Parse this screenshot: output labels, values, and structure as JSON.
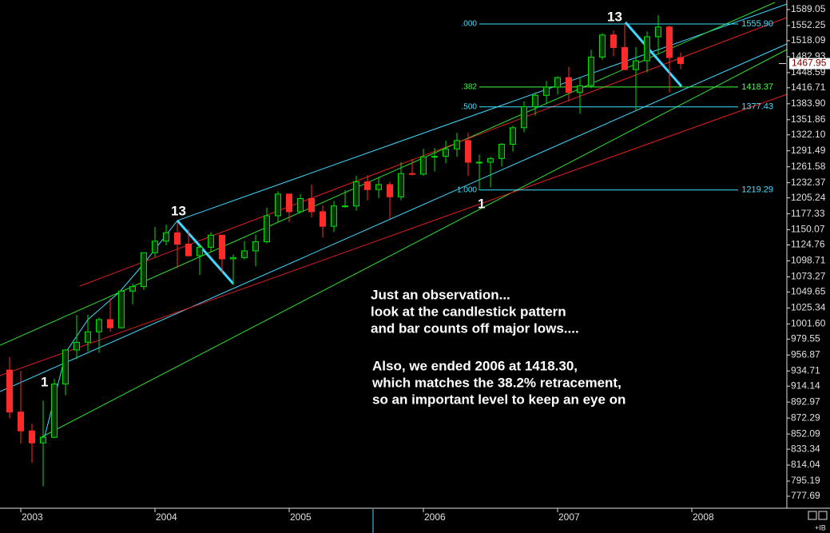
{
  "chart_data": {
    "type": "candlestick",
    "log_scale": true,
    "up_color": "#00e000",
    "down_color": "#ff2a2a",
    "categories": [
      null,
      null,
      null,
      null,
      null,
      null,
      null,
      null,
      null,
      null,
      null,
      null,
      null,
      null,
      null,
      null,
      null,
      null,
      null,
      null,
      null,
      null,
      null,
      null,
      null,
      null,
      null,
      null,
      null,
      null,
      null,
      null,
      null,
      null,
      null,
      null,
      null,
      null,
      null,
      null,
      null,
      null,
      null,
      null,
      null,
      null,
      null,
      null,
      null,
      null,
      null,
      null,
      null,
      null,
      null,
      null,
      null,
      null,
      null,
      null,
      null
    ],
    "open": [
      936,
      880,
      856,
      841,
      848,
      917,
      964,
      975,
      990,
      1008,
      996,
      1051,
      1058,
      1112,
      1131,
      1145,
      1126,
      1107,
      1121,
      1141,
      1102,
      1104,
      1115,
      1130,
      1174,
      1212,
      1181,
      1204,
      1181,
      1156,
      1191,
      1191,
      1234,
      1220,
      1229,
      1207,
      1249,
      1248,
      1280,
      1281,
      1295,
      1311,
      1270,
      1270,
      1277,
      1304,
      1336,
      1378,
      1401,
      1418,
      1438,
      1407,
      1421,
      1482,
      1531,
      1503,
      1455,
      1474,
      1527,
      1549,
      1481
    ],
    "high": [
      954,
      935,
      865,
      895,
      924,
      965,
      1015,
      1015,
      1011,
      1040,
      1053,
      1063,
      1112,
      1155,
      1159,
      1163,
      1151,
      1127,
      1146,
      1141,
      1109,
      1131,
      1142,
      1188,
      1217,
      1212,
      1212,
      1229,
      1192,
      1200,
      1219,
      1245,
      1246,
      1243,
      1234,
      1270,
      1276,
      1295,
      1297,
      1311,
      1326,
      1326,
      1284,
      1280,
      1306,
      1340,
      1389,
      1407,
      1431,
      1441,
      1461,
      1438,
      1498,
      1535,
      1541,
      1556,
      1504,
      1539,
      1576,
      1552,
      1492
    ],
    "low": [
      872,
      840,
      817,
      789,
      847,
      902,
      951,
      962,
      960,
      990,
      995,
      1031,
      1053,
      1105,
      1124,
      1087,
      1106,
      1076,
      1113,
      1079,
      1060,
      1101,
      1090,
      1127,
      1163,
      1163,
      1180,
      1171,
      1137,
      1146,
      1188,
      1183,
      1201,
      1205,
      1169,
      1201,
      1246,
      1245,
      1253,
      1268,
      1280,
      1245,
      1219,
      1224,
      1262,
      1290,
      1327,
      1360,
      1385,
      1403,
      1389,
      1364,
      1416,
      1476,
      1484,
      1454,
      1371,
      1449,
      1490,
      1407,
      1456
    ],
    "close": [
      880,
      856,
      841,
      848,
      917,
      964,
      975,
      990,
      1008,
      996,
      1051,
      1058,
      1112,
      1131,
      1145,
      1126,
      1107,
      1121,
      1141,
      1102,
      1104,
      1115,
      1130,
      1174,
      1212,
      1181,
      1204,
      1181,
      1156,
      1191,
      1191,
      1234,
      1220,
      1229,
      1207,
      1249,
      1248,
      1280,
      1281,
      1295,
      1311,
      1270,
      1270,
      1277,
      1304,
      1336,
      1378,
      1401,
      1418,
      1438,
      1407,
      1421,
      1482,
      1531,
      1503,
      1455,
      1474,
      1527,
      1549,
      1481,
      1468
    ],
    "xlim": [
      -0.857,
      69.5
    ],
    "xticks": [
      {
        "value": 1,
        "label": "2003"
      },
      {
        "value": 13,
        "label": "2004"
      },
      {
        "value": 25,
        "label": "2005"
      },
      {
        "value": 37,
        "label": "2006"
      },
      {
        "value": 49,
        "label": "2007"
      },
      {
        "value": 61,
        "label": "2008"
      }
    ],
    "ylim": [
      765,
      1611.6
    ],
    "yticks": [
      1589.05,
      1552.25,
      1518.09,
      1482.93,
      1448.59,
      1416.71,
      {
        "value": 1383.9,
        "label": "1383.90"
      },
      1351.86,
      {
        "value": 1322.1,
        "label": "1322.10"
      },
      1291.49,
      1261.58,
      1232.37,
      1205.24,
      1177.33,
      1150.07,
      1124.76,
      1098.71,
      1073.27,
      1049.65,
      1025.34,
      {
        "value": 1001.6,
        "label": "1001.60"
      },
      979.55,
      956.87,
      934.71,
      914.14,
      892.97,
      872.29,
      852.09,
      833.34,
      814.04,
      795.19,
      777.69
    ],
    "last_price": {
      "value": 1467.95,
      "label": "1467.95"
    },
    "fib_levels": [
      {
        "ratio_label": ".000",
        "price": 1555.9,
        "price_label": "1555.90",
        "color": "#40e0ff"
      },
      {
        "ratio_label": ".382",
        "price": 1418.37,
        "price_label": "1418.37",
        "color": "#40ff40"
      },
      {
        "ratio_label": ".500",
        "price": 1377.43,
        "price_label": "1377.43",
        "color": "#40e0ff"
      },
      {
        "ratio_label": "1.000",
        "price": 1219.29,
        "price_label": "1219.29",
        "color": "#40e0ff"
      }
    ],
    "bar_counts": [
      "13",
      "1",
      "1",
      "13"
    ],
    "annotation": [
      [
        "Just an observation...",
        "look at the candlestick pattern",
        "and bar counts off major lows...."
      ],
      [
        "Also, we ended 2006 at 1418.30,",
        "which matches the 38.2% retracement,",
        "so an important level to  keep an eye on"
      ]
    ],
    "corner_text": "+IB"
  }
}
